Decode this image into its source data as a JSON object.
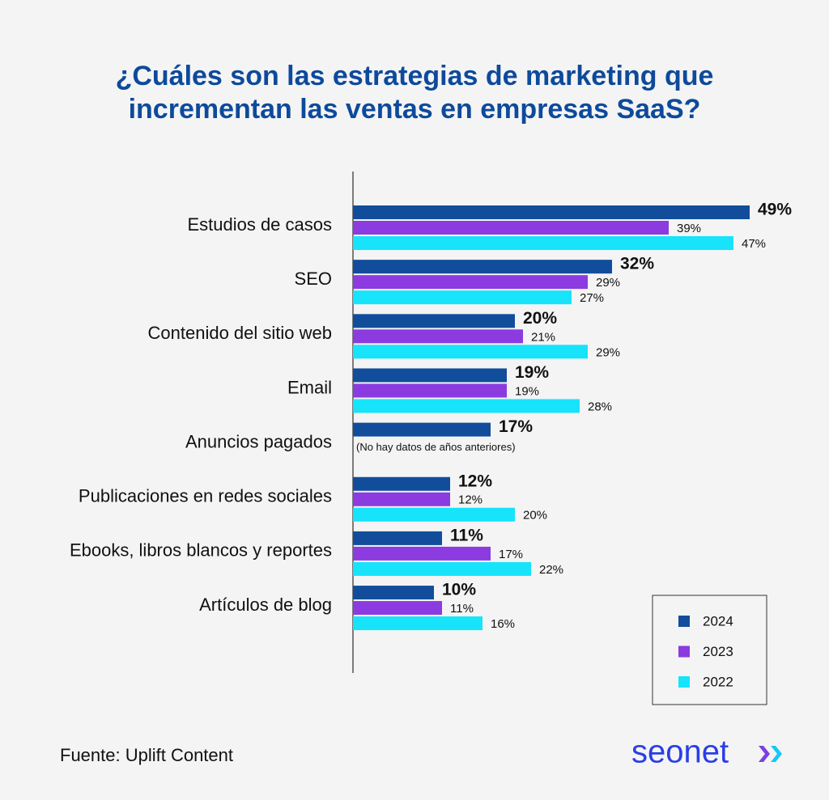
{
  "chart_data": {
    "type": "hbar",
    "title": "¿Cuáles son las estrategias de marketing que incrementan las ventas en empresas SaaS?",
    "categories": [
      "Estudios de casos",
      "SEO",
      "Contenido del sitio web",
      "Email",
      "Anuncios pagados",
      "Publicaciones en redes sociales",
      "Ebooks, libros blancos y reportes",
      "Artículos de blog"
    ],
    "series": [
      {
        "name": "2024",
        "color": "#114d9b",
        "values": [
          49,
          32,
          20,
          19,
          17,
          12,
          11,
          10
        ],
        "value_labels": [
          "49%",
          "32%",
          "20%",
          "19%",
          "17%",
          "12%",
          "11%",
          "10%"
        ]
      },
      {
        "name": "2023",
        "color": "#8b3be0",
        "values": [
          39,
          29,
          21,
          19,
          null,
          12,
          17,
          11
        ],
        "value_labels": [
          "39%",
          "29%",
          "21%",
          "19%",
          null,
          "12%",
          "17%",
          "11%"
        ]
      },
      {
        "name": "2022",
        "color": "#17e3fb",
        "values": [
          47,
          27,
          29,
          28,
          null,
          20,
          22,
          16
        ],
        "value_labels": [
          "47%",
          "27%",
          "29%",
          "28%",
          null,
          "20%",
          "22%",
          "16%"
        ]
      }
    ],
    "xlim": [
      0,
      55
    ],
    "annotation": "(No hay datos de años anteriores)",
    "legend": "bottom-right",
    "source": "Fuente: Uplift Content",
    "logo": "seonet"
  }
}
